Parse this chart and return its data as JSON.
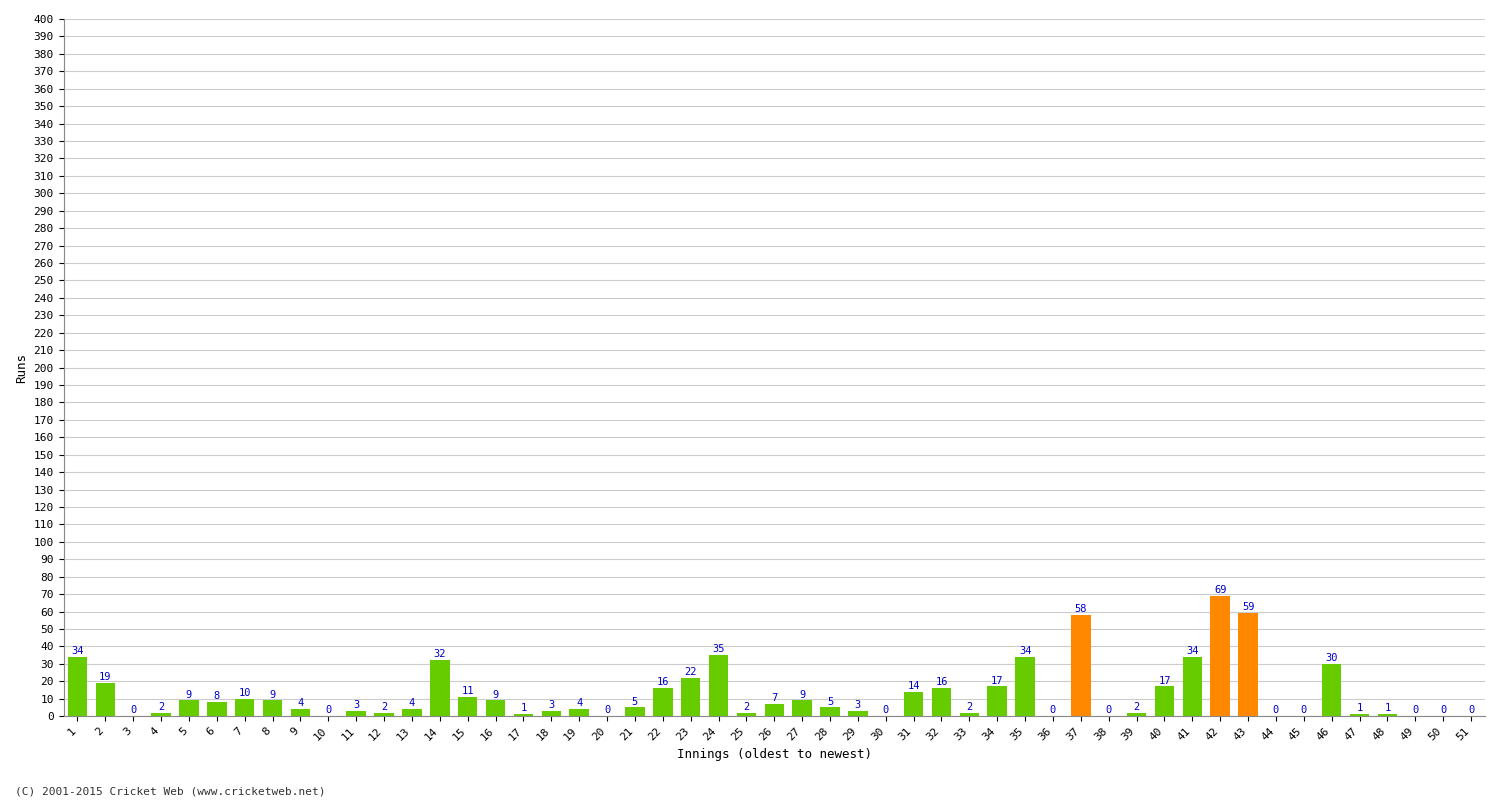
{
  "xlabel": "Innings (oldest to newest)",
  "ylabel": "Runs",
  "ylim": [
    0,
    400
  ],
  "yticks": [
    0,
    10,
    20,
    30,
    40,
    50,
    60,
    70,
    80,
    90,
    100,
    110,
    120,
    130,
    140,
    150,
    160,
    170,
    180,
    190,
    200,
    210,
    220,
    230,
    240,
    250,
    260,
    270,
    280,
    290,
    300,
    310,
    320,
    330,
    340,
    350,
    360,
    370,
    380,
    390,
    400
  ],
  "innings": [
    1,
    2,
    3,
    4,
    5,
    6,
    7,
    8,
    9,
    10,
    11,
    12,
    13,
    14,
    15,
    16,
    17,
    18,
    19,
    20,
    21,
    22,
    23,
    24,
    25,
    26,
    27,
    28,
    29,
    30,
    31,
    32,
    33,
    34,
    35,
    36,
    37,
    38,
    39,
    40,
    41,
    42,
    43,
    44,
    45,
    46,
    47,
    48,
    49,
    50,
    51
  ],
  "values": [
    34,
    19,
    0,
    2,
    9,
    8,
    10,
    9,
    4,
    0,
    3,
    2,
    4,
    32,
    11,
    9,
    1,
    3,
    4,
    0,
    5,
    16,
    22,
    35,
    2,
    7,
    9,
    5,
    3,
    0,
    14,
    16,
    2,
    17,
    34,
    0,
    58,
    0,
    2,
    17,
    34,
    69,
    59,
    0,
    0,
    30,
    1,
    1,
    0,
    0,
    0
  ],
  "colors": [
    "#66cc00",
    "#66cc00",
    "#66cc00",
    "#66cc00",
    "#66cc00",
    "#66cc00",
    "#66cc00",
    "#66cc00",
    "#66cc00",
    "#66cc00",
    "#66cc00",
    "#66cc00",
    "#66cc00",
    "#66cc00",
    "#66cc00",
    "#66cc00",
    "#66cc00",
    "#66cc00",
    "#66cc00",
    "#66cc00",
    "#66cc00",
    "#66cc00",
    "#66cc00",
    "#66cc00",
    "#66cc00",
    "#66cc00",
    "#66cc00",
    "#66cc00",
    "#66cc00",
    "#66cc00",
    "#66cc00",
    "#66cc00",
    "#66cc00",
    "#66cc00",
    "#66cc00",
    "#66cc00",
    "#ff8800",
    "#66cc00",
    "#66cc00",
    "#66cc00",
    "#66cc00",
    "#ff8800",
    "#ff8800",
    "#66cc00",
    "#66cc00",
    "#66cc00",
    "#66cc00",
    "#66cc00",
    "#66cc00",
    "#66cc00",
    "#66cc00"
  ],
  "label_color": "#0000cc",
  "bg_color": "#ffffff",
  "grid_color": "#cccccc",
  "footnote": "(C) 2001-2015 Cricket Web (www.cricketweb.net)"
}
